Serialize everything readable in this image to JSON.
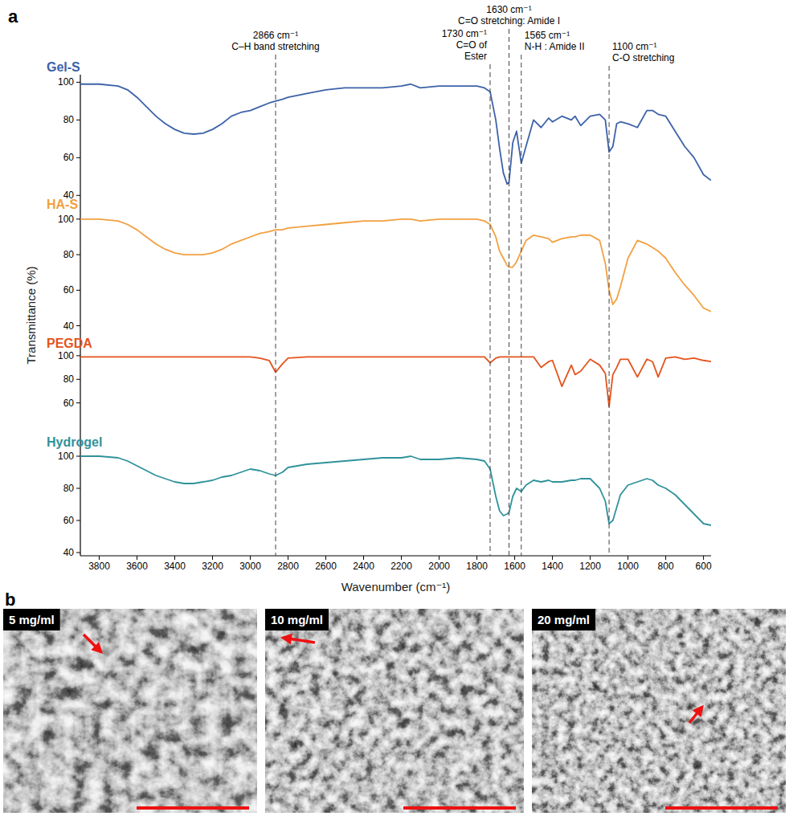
{
  "figure": {
    "panel_letter": "a",
    "ylabel": "Transmittance (%)",
    "xlabel": "Wavenumber (cm⁻¹)",
    "annotations": [
      {
        "x": 2866,
        "lines": [
          "2866 cm⁻¹",
          "C–H band stretching"
        ]
      },
      {
        "x": 1730,
        "lines": [
          "1730 cm⁻¹",
          "C=O of",
          "Ester"
        ]
      },
      {
        "x": 1630,
        "lines": [
          "1630 cm⁻¹",
          "C=O stretching: Amide I"
        ]
      },
      {
        "x": 1565,
        "lines": [
          "1565 cm⁻¹",
          "N-H : Amide II"
        ]
      },
      {
        "x": 1100,
        "lines": [
          "1100 cm⁻¹",
          "C-O stretching"
        ]
      }
    ]
  },
  "chart_data": [
    {
      "type": "line",
      "legend": "upper left",
      "tick_labels": "y",
      "x": [
        3900,
        3800,
        3700,
        3650,
        3600,
        3550,
        3500,
        3450,
        3400,
        3350,
        3300,
        3250,
        3200,
        3150,
        3100,
        3050,
        3000,
        2950,
        2900,
        2866,
        2830,
        2800,
        2700,
        2600,
        2500,
        2400,
        2300,
        2200,
        2150,
        2100,
        2000,
        1900,
        1800,
        1760,
        1730,
        1700,
        1680,
        1660,
        1640,
        1630,
        1610,
        1590,
        1565,
        1540,
        1500,
        1460,
        1420,
        1400,
        1350,
        1300,
        1280,
        1250,
        1200,
        1150,
        1120,
        1100,
        1080,
        1060,
        1040,
        1000,
        950,
        900,
        870,
        840,
        800,
        750,
        700,
        650,
        600,
        560
      ],
      "series": [
        {
          "name": "Gel-S",
          "color": "#3d62a8",
          "values": [
            99,
            99,
            98,
            96,
            92,
            87,
            82,
            78,
            75,
            73,
            72.5,
            73,
            75,
            78,
            82,
            84,
            85,
            87,
            89,
            90,
            91,
            92,
            94,
            96,
            97,
            97,
            97,
            98,
            99,
            97,
            98,
            98,
            98,
            97,
            95,
            80,
            65,
            52,
            46,
            47,
            68,
            74,
            57,
            66,
            80,
            76,
            81,
            79,
            82,
            80,
            82,
            77,
            82,
            83,
            80,
            63,
            66,
            78,
            79,
            78,
            76,
            85,
            85,
            83,
            82,
            74,
            66,
            60,
            51,
            48
          ]
        }
      ],
      "xlim": [
        3900,
        560
      ],
      "ylim": [
        38,
        104
      ],
      "yticks": [
        40,
        60,
        80,
        100
      ]
    },
    {
      "type": "line",
      "legend": "upper left",
      "tick_labels": "y",
      "x": [
        3900,
        3800,
        3700,
        3650,
        3600,
        3550,
        3500,
        3450,
        3400,
        3350,
        3300,
        3250,
        3200,
        3150,
        3100,
        3050,
        3000,
        2950,
        2900,
        2866,
        2830,
        2800,
        2700,
        2600,
        2500,
        2400,
        2300,
        2200,
        2150,
        2100,
        2000,
        1900,
        1800,
        1760,
        1730,
        1700,
        1680,
        1660,
        1640,
        1630,
        1610,
        1590,
        1565,
        1540,
        1500,
        1460,
        1420,
        1400,
        1350,
        1300,
        1280,
        1250,
        1200,
        1150,
        1120,
        1100,
        1080,
        1060,
        1040,
        1000,
        950,
        900,
        870,
        840,
        800,
        750,
        700,
        650,
        600,
        560
      ],
      "series": [
        {
          "name": "HA-S",
          "color": "#f2a041",
          "values": [
            100,
            100,
            99,
            97,
            94,
            90,
            86,
            83,
            81,
            80,
            80,
            80,
            81,
            83,
            86,
            88,
            90,
            92,
            93,
            94,
            94,
            95,
            96,
            97,
            98,
            99,
            99,
            100,
            100,
            99,
            100,
            100,
            100,
            99,
            97,
            90,
            82,
            78,
            74,
            73,
            73,
            76,
            82,
            88,
            91,
            90,
            89,
            87,
            89,
            90,
            90,
            91,
            91,
            88,
            75,
            60,
            52,
            55,
            62,
            78,
            88,
            86,
            84,
            82,
            78,
            70,
            63,
            57,
            50,
            48
          ]
        }
      ],
      "xlim": [
        3900,
        560
      ],
      "ylim": [
        38,
        104
      ],
      "yticks": [
        40,
        60,
        80,
        100
      ]
    },
    {
      "type": "line",
      "legend": "upper left",
      "tick_labels": "y",
      "x": [
        3900,
        3800,
        3700,
        3650,
        3600,
        3550,
        3500,
        3450,
        3400,
        3350,
        3300,
        3250,
        3200,
        3150,
        3100,
        3050,
        3000,
        2950,
        2900,
        2866,
        2830,
        2800,
        2700,
        2600,
        2500,
        2400,
        2300,
        2200,
        2150,
        2100,
        2000,
        1900,
        1800,
        1760,
        1730,
        1700,
        1680,
        1660,
        1640,
        1630,
        1610,
        1590,
        1565,
        1540,
        1500,
        1460,
        1420,
        1400,
        1350,
        1300,
        1280,
        1250,
        1200,
        1150,
        1120,
        1100,
        1080,
        1060,
        1040,
        1000,
        950,
        900,
        870,
        840,
        800,
        750,
        700,
        650,
        600,
        560
      ],
      "series": [
        {
          "name": "PEGDA",
          "color": "#e4531d",
          "values": [
            99,
            99,
            99,
            99,
            99,
            99,
            99,
            99,
            99,
            99,
            99,
            99,
            99,
            99,
            99,
            99,
            99,
            98,
            96,
            86,
            93,
            98,
            99,
            99,
            99,
            99,
            99,
            99,
            99,
            99,
            99,
            99,
            99,
            99,
            94,
            98,
            99,
            99,
            99,
            99,
            99,
            99,
            99,
            99,
            99,
            90,
            95,
            96,
            74,
            92,
            84,
            87,
            97,
            92,
            85,
            57,
            84,
            90,
            97,
            97,
            82,
            97,
            95,
            82,
            98,
            99,
            97,
            98,
            96,
            95
          ]
        }
      ],
      "xlim": [
        3900,
        560
      ],
      "ylim": [
        55,
        104
      ],
      "yticks": [
        60,
        80,
        100
      ]
    },
    {
      "type": "line",
      "legend": "upper left",
      "x": [
        3900,
        3800,
        3700,
        3650,
        3600,
        3550,
        3500,
        3450,
        3400,
        3350,
        3300,
        3250,
        3200,
        3150,
        3100,
        3050,
        3000,
        2950,
        2900,
        2866,
        2830,
        2800,
        2700,
        2600,
        2500,
        2400,
        2300,
        2200,
        2150,
        2100,
        2000,
        1900,
        1800,
        1760,
        1730,
        1700,
        1680,
        1660,
        1640,
        1630,
        1610,
        1590,
        1565,
        1540,
        1500,
        1460,
        1420,
        1400,
        1350,
        1300,
        1280,
        1250,
        1200,
        1150,
        1120,
        1100,
        1080,
        1060,
        1040,
        1000,
        950,
        900,
        870,
        840,
        800,
        750,
        700,
        650,
        600,
        560
      ],
      "series": [
        {
          "name": "Hydrogel",
          "color": "#2f929b",
          "values": [
            100,
            100,
            99,
            97,
            94,
            91,
            88,
            86,
            84,
            83,
            83,
            84,
            85,
            87,
            88,
            90,
            92,
            91,
            89,
            88,
            90,
            93,
            95,
            96,
            97,
            98,
            99,
            99,
            100,
            98,
            98,
            99,
            98,
            97,
            92,
            75,
            66,
            63,
            64,
            65,
            75,
            80,
            78,
            82,
            85,
            84,
            85,
            84,
            84,
            85,
            85,
            86,
            86,
            80,
            72,
            58,
            60,
            68,
            76,
            82,
            84,
            86,
            85,
            82,
            80,
            76,
            70,
            64,
            58,
            57
          ]
        }
      ],
      "xlim": [
        3900,
        560
      ],
      "ylim": [
        38,
        104
      ],
      "yticks": [
        40,
        60,
        80,
        100
      ],
      "xticks": [
        3800,
        3600,
        3400,
        3200,
        3000,
        2800,
        2600,
        2400,
        2200,
        2000,
        1800,
        1600,
        1400,
        1200,
        1000,
        800,
        600
      ]
    }
  ],
  "sem": {
    "panel_letter": "b",
    "images": [
      {
        "label": "5 mg/ml"
      },
      {
        "label": "10 mg/ml"
      },
      {
        "label": "20 mg/ml"
      }
    ]
  }
}
